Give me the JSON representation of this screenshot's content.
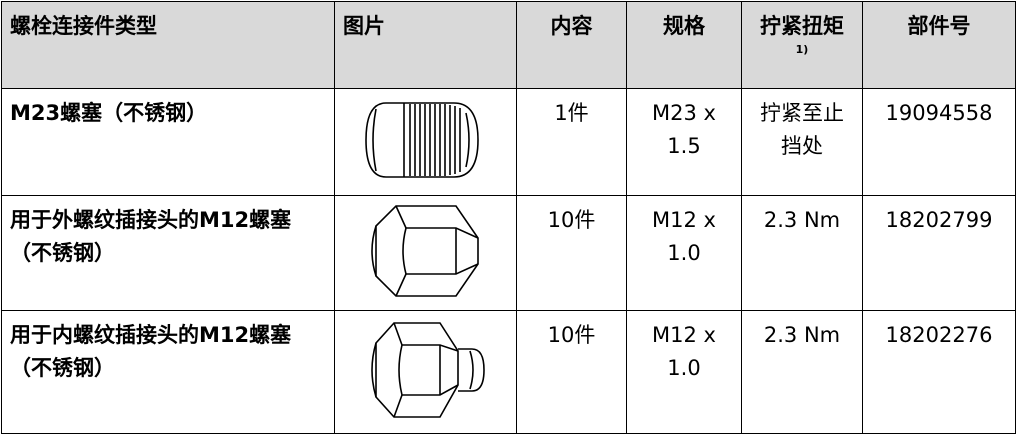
{
  "table": {
    "headers": [
      "螺栓连接件类型",
      "图片",
      "内容",
      "规格",
      "拧紧扭矩",
      "部件号"
    ],
    "header_note": "1)",
    "rows": [
      [
        "M23螺塞（不锈钢）",
        "1件",
        "M23 x 1.5",
        "拧紧至止挡处",
        "19094558"
      ],
      [
        "用于外螺纹插接头的M12螺塞（不锈钢）",
        "10件",
        "M12 x 1.0",
        "2.3 Nm",
        "18202799"
      ],
      [
        "用于内螺纹插接头的M12螺塞（不锈钢）",
        "10件",
        "M12 x 1.0",
        "2.3 Nm",
        "18202276"
      ]
    ]
  }
}
